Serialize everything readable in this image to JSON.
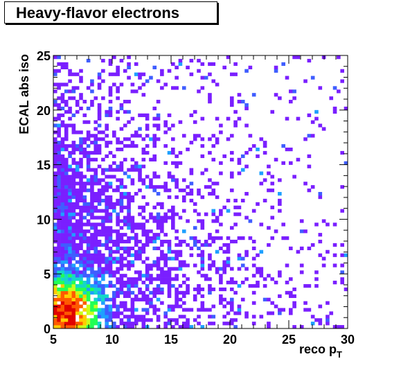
{
  "chart_data": {
    "type": "heatmap",
    "title": "Heavy-flavor electrons",
    "xlabel": "reco p",
    "xlabel_sub": "T",
    "ylabel": "ECAL abs iso",
    "xlim": [
      5,
      30
    ],
    "ylim": [
      0,
      25
    ],
    "x_ticks": [
      "5",
      "10",
      "15",
      "20",
      "25",
      "30"
    ],
    "y_ticks": [
      "0",
      "5",
      "10",
      "15",
      "20",
      "25"
    ],
    "bins": {
      "nx": 80,
      "ny": 80
    },
    "grid": false,
    "legend": "none",
    "palette": [
      "#7a1fff",
      "#3f5dff",
      "#1ea0ff",
      "#15d7c8",
      "#22ff55",
      "#c8ff1a",
      "#ffcc00",
      "#ff5a00",
      "#e00000"
    ],
    "density_peak": {
      "x": 6.0,
      "y": 1.5
    },
    "density_trend": "isolation falls with increasing reco pT; densest at low pT and low iso"
  }
}
